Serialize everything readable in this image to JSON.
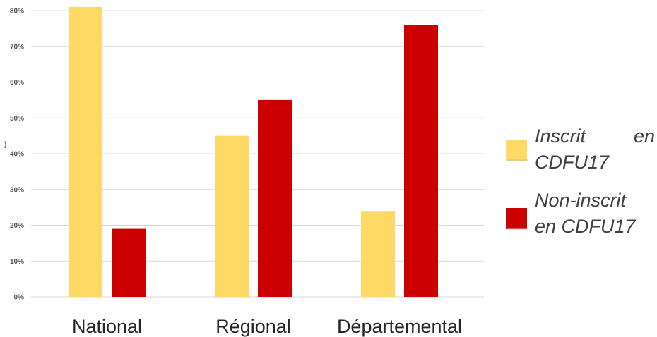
{
  "chart_data": {
    "type": "bar",
    "categories": [
      "National",
      "Régional",
      "Départemental"
    ],
    "series": [
      {
        "name": "Inscrit en CDFU17",
        "values": [
          81,
          45,
          24
        ],
        "color": "#FFD966"
      },
      {
        "name": "Non-inscrit en CDFU17",
        "values": [
          19,
          55,
          76
        ],
        "color": "#CC0000"
      }
    ],
    "ylim": [
      0,
      80
    ],
    "yticks": [
      "0%",
      "10%",
      "20%",
      "30%",
      "40%",
      "50%",
      "60%",
      "70%",
      "80%"
    ],
    "yaxis_fragment": ")",
    "grid": true,
    "legend_position": "right",
    "legend": [
      {
        "lines": [
          "Inscrit",
          "en",
          "CDFU17"
        ]
      },
      {
        "lines": [
          "Non-inscrit",
          "en CDFU17"
        ]
      }
    ]
  }
}
